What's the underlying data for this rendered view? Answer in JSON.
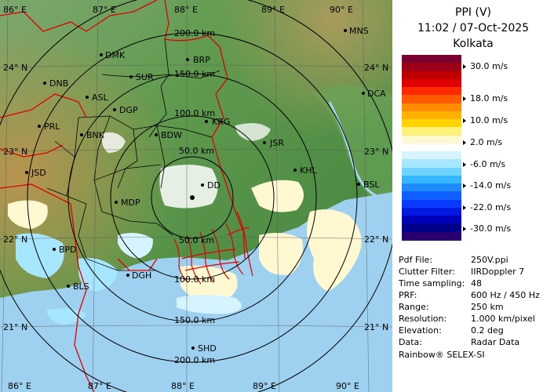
{
  "header": {
    "product": "PPI (V)",
    "datetime": "11:02 / 07-Oct-2025",
    "site": "Kolkata"
  },
  "legend": {
    "unit": "m/s",
    "labels": [
      "30.0 m/s",
      "18.0 m/s",
      "10.0 m/s",
      "2.0 m/s",
      "-6.0 m/s",
      "-14.0 m/s",
      "-22.0 m/s",
      "-30.0 m/s"
    ],
    "colors": [
      "#7a0030",
      "#9c0018",
      "#c00000",
      "#e00000",
      "#ff2a00",
      "#ff5a00",
      "#ff8c00",
      "#ffb000",
      "#ffd200",
      "#fff07a",
      "#fff8d0",
      "#ffffff",
      "#d6f4ff",
      "#a6e6ff",
      "#6fd2ff",
      "#36b6ff",
      "#1e8cff",
      "#1060ff",
      "#0a3aff",
      "#0018e0",
      "#0000b8",
      "#00008a",
      "#280070"
    ]
  },
  "metadata": [
    {
      "key": "Pdf File:",
      "value": "250V.ppi"
    },
    {
      "key": "Clutter Filter:",
      "value": "IIRDoppler 7"
    },
    {
      "key": "Time sampling:",
      "value": "48"
    },
    {
      "key": "PRF:",
      "value": "600 Hz / 450 Hz"
    },
    {
      "key": "Range:",
      "value": "250 km"
    },
    {
      "key": "Resolution:",
      "value": "1.000 km/pixel"
    },
    {
      "key": "Elevation:",
      "value": "0.2 deg"
    },
    {
      "key": "Data:",
      "value": "Radar Data"
    }
  ],
  "credit": "Rainbow® SELEX-SI",
  "map": {
    "lon_labels": [
      "86° E",
      "87° E",
      "88° E",
      "89° E",
      "90° E"
    ],
    "lat_labels": [
      "24° N",
      "23° N",
      "22° N",
      "21° N"
    ],
    "range_labels": [
      "200.0 km",
      "150.0 km",
      "100.0 km",
      "50.0 km",
      "50.0 km",
      "100.0 km",
      "150.0 km",
      "200.0 km"
    ],
    "stations": [
      "MNS",
      "DMK",
      "BRP",
      "DNB",
      "SUR",
      "ASL",
      "DGP",
      "DCA",
      "PRL",
      "KRG",
      "BNK",
      "BDW",
      "JSR",
      "JSD",
      "KHL",
      "DD",
      "BSL",
      "MDP",
      "BPD",
      "BLS",
      "DGH",
      "SHD"
    ]
  }
}
